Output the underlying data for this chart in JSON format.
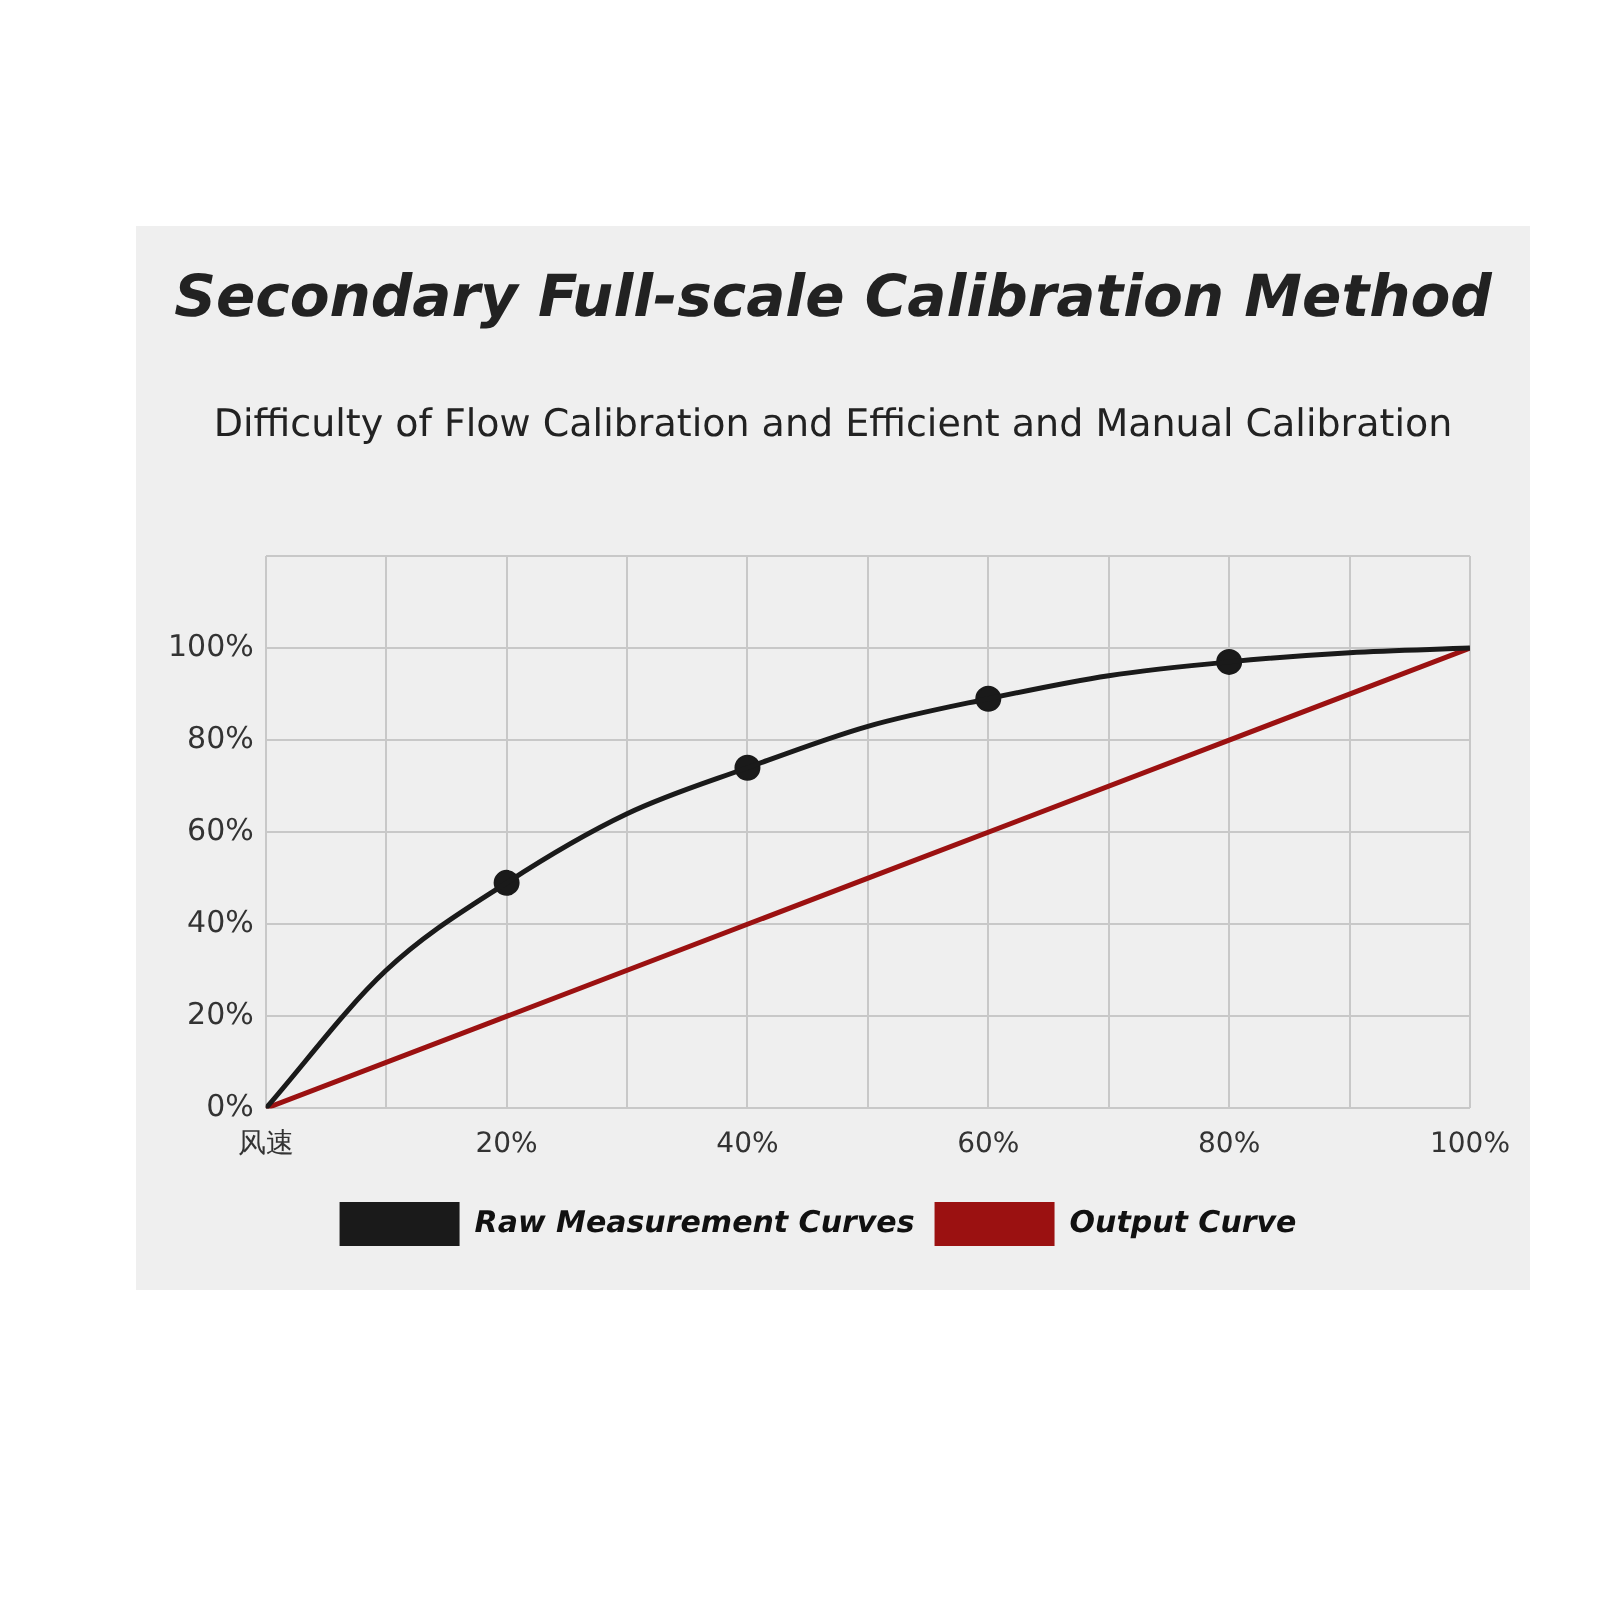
{
  "chart_data": {
    "type": "line",
    "title": "Secondary Full-scale Calibration Method",
    "subtitle": "Difficulty of Flow Calibration and Efficient and Manual Calibration",
    "x": [
      0,
      10,
      20,
      30,
      40,
      50,
      60,
      70,
      80,
      90,
      100
    ],
    "series": [
      {
        "name": "Raw Measurement Curves",
        "color": "#1a1a1a",
        "values": [
          0,
          30,
          49,
          64,
          74,
          83,
          89,
          94,
          97,
          99,
          100
        ]
      },
      {
        "type": "scatter",
        "color": "#1a1a1a",
        "x": [
          20,
          40,
          60,
          80
        ],
        "values": [
          49,
          74,
          89,
          97
        ],
        "marker": "circle"
      },
      {
        "name": "Output Curve",
        "color": "#9b1111",
        "x": [
          0,
          100
        ],
        "values": [
          0,
          100
        ]
      }
    ],
    "xlim": [
      0,
      100
    ],
    "xticks": [
      {
        "value": 0,
        "label": "风速"
      },
      {
        "value": 10,
        "label": null
      },
      {
        "value": 20,
        "label": "20%"
      },
      {
        "value": 30,
        "label": null
      },
      {
        "value": 40,
        "label": "40%"
      },
      {
        "value": 50,
        "label": null
      },
      {
        "value": 60,
        "label": "60%"
      },
      {
        "value": 70,
        "label": null
      },
      {
        "value": 80,
        "label": "80%"
      },
      {
        "value": 90,
        "label": null
      },
      {
        "value": 100,
        "label": "100%"
      }
    ],
    "ylim": [
      0,
      120
    ],
    "yticks": [
      {
        "value": 0,
        "label": "0%"
      },
      {
        "value": 20,
        "label": "20%"
      },
      {
        "value": 40,
        "label": "40%"
      },
      {
        "value": 60,
        "label": "60%"
      },
      {
        "value": 80,
        "label": "80%"
      },
      {
        "value": 100,
        "label": "100%"
      },
      {
        "value": 120,
        "label": null
      }
    ],
    "grid": true,
    "legend": "bottom",
    "marker": "none",
    "line_style": "solid"
  }
}
